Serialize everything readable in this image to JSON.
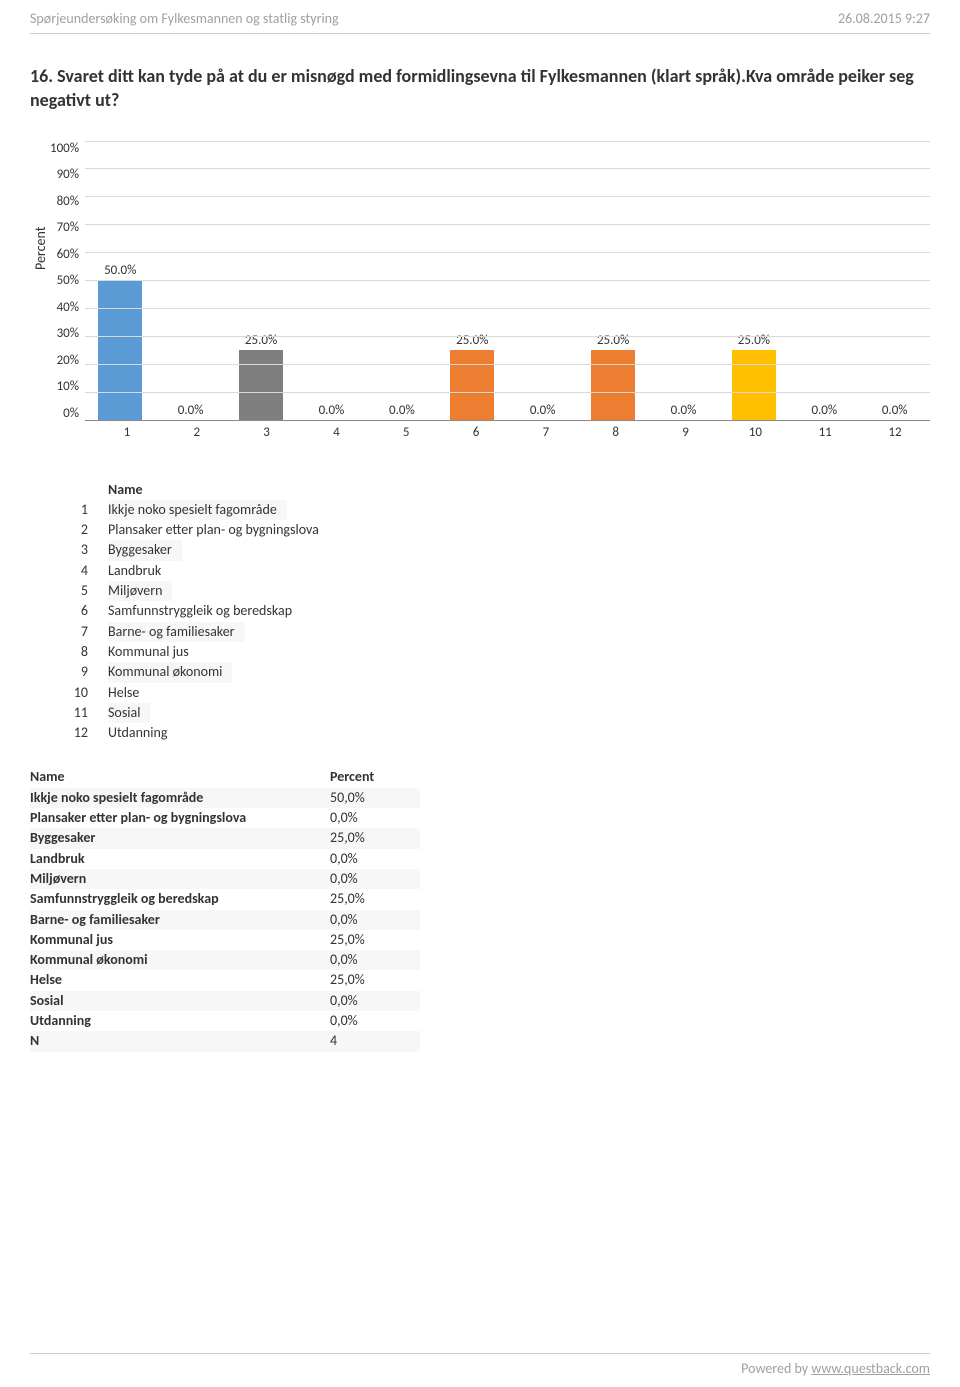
{
  "header": {
    "left": "Spørjeundersøking om Fylkesmannen og statlig styring",
    "right": "26.08.2015 9:27"
  },
  "question": "16. Svaret ditt kan tyde på at du er misnøgd med formidlingsevna til Fylkesmannen (klart språk).Kva område peiker seg negativt ut?",
  "chart": {
    "type": "bar",
    "ylabel": "Percent",
    "ylim": [
      0,
      100
    ],
    "ytick_step": 10,
    "yticks": [
      "100%",
      "90%",
      "80%",
      "70%",
      "60%",
      "50%",
      "40%",
      "30%",
      "20%",
      "10%",
      "0%"
    ],
    "grid_color": "#d9d9d9",
    "axis_color": "#888888",
    "background_color": "#ffffff",
    "label_fontsize": 13,
    "bar_width_pct": 62,
    "categories": [
      "1",
      "2",
      "3",
      "4",
      "5",
      "6",
      "7",
      "8",
      "9",
      "10",
      "11",
      "12"
    ],
    "values": [
      50.0,
      0.0,
      25.0,
      0.0,
      0.0,
      25.0,
      0.0,
      25.0,
      0.0,
      25.0,
      0.0,
      0.0
    ],
    "value_labels": [
      "50.0%",
      "0.0%",
      "25.0%",
      "0.0%",
      "0.0%",
      "25.0%",
      "0.0%",
      "25.0%",
      "0.0%",
      "25.0%",
      "0.0%",
      "0.0%"
    ],
    "bar_colors": [
      "#5b9bd5",
      "#7f7f7f",
      "#7f7f7f",
      "#ffc000",
      "#5b9bd5",
      "#ed7d31",
      "#7f7f7f",
      "#ed7d31",
      "#ffc000",
      "#ffc000",
      "#5b9bd5",
      "#ed7d31"
    ]
  },
  "name_table": {
    "header": "Name",
    "rows": [
      {
        "idx": "1",
        "name": "Ikkje noko spesielt fagområde"
      },
      {
        "idx": "2",
        "name": "Plansaker etter plan- og bygningslova"
      },
      {
        "idx": "3",
        "name": "Byggesaker"
      },
      {
        "idx": "4",
        "name": "Landbruk"
      },
      {
        "idx": "5",
        "name": "Miljøvern"
      },
      {
        "idx": "6",
        "name": "Samfunnstryggleik og beredskap"
      },
      {
        "idx": "7",
        "name": "Barne- og familiesaker"
      },
      {
        "idx": "8",
        "name": "Kommunal jus"
      },
      {
        "idx": "9",
        "name": "Kommunal økonomi"
      },
      {
        "idx": "10",
        "name": "Helse"
      },
      {
        "idx": "11",
        "name": "Sosial"
      },
      {
        "idx": "12",
        "name": "Utdanning"
      }
    ]
  },
  "percent_table": {
    "headers": {
      "name": "Name",
      "percent": "Percent"
    },
    "rows": [
      {
        "name": "Ikkje noko spesielt fagområde",
        "percent": "50,0%"
      },
      {
        "name": "Plansaker etter plan- og bygningslova",
        "percent": "0,0%"
      },
      {
        "name": "Byggesaker",
        "percent": "25,0%"
      },
      {
        "name": "Landbruk",
        "percent": "0,0%"
      },
      {
        "name": "Miljøvern",
        "percent": "0,0%"
      },
      {
        "name": "Samfunnstryggleik og beredskap",
        "percent": "25,0%"
      },
      {
        "name": "Barne- og familiesaker",
        "percent": "0,0%"
      },
      {
        "name": "Kommunal jus",
        "percent": "25,0%"
      },
      {
        "name": "Kommunal økonomi",
        "percent": "0,0%"
      },
      {
        "name": "Helse",
        "percent": "25,0%"
      },
      {
        "name": "Sosial",
        "percent": "0,0%"
      },
      {
        "name": "Utdanning",
        "percent": "0,0%"
      },
      {
        "name": "N",
        "percent": "4"
      }
    ]
  },
  "footer": {
    "prefix": "Powered by ",
    "link": "www.questback.com"
  }
}
